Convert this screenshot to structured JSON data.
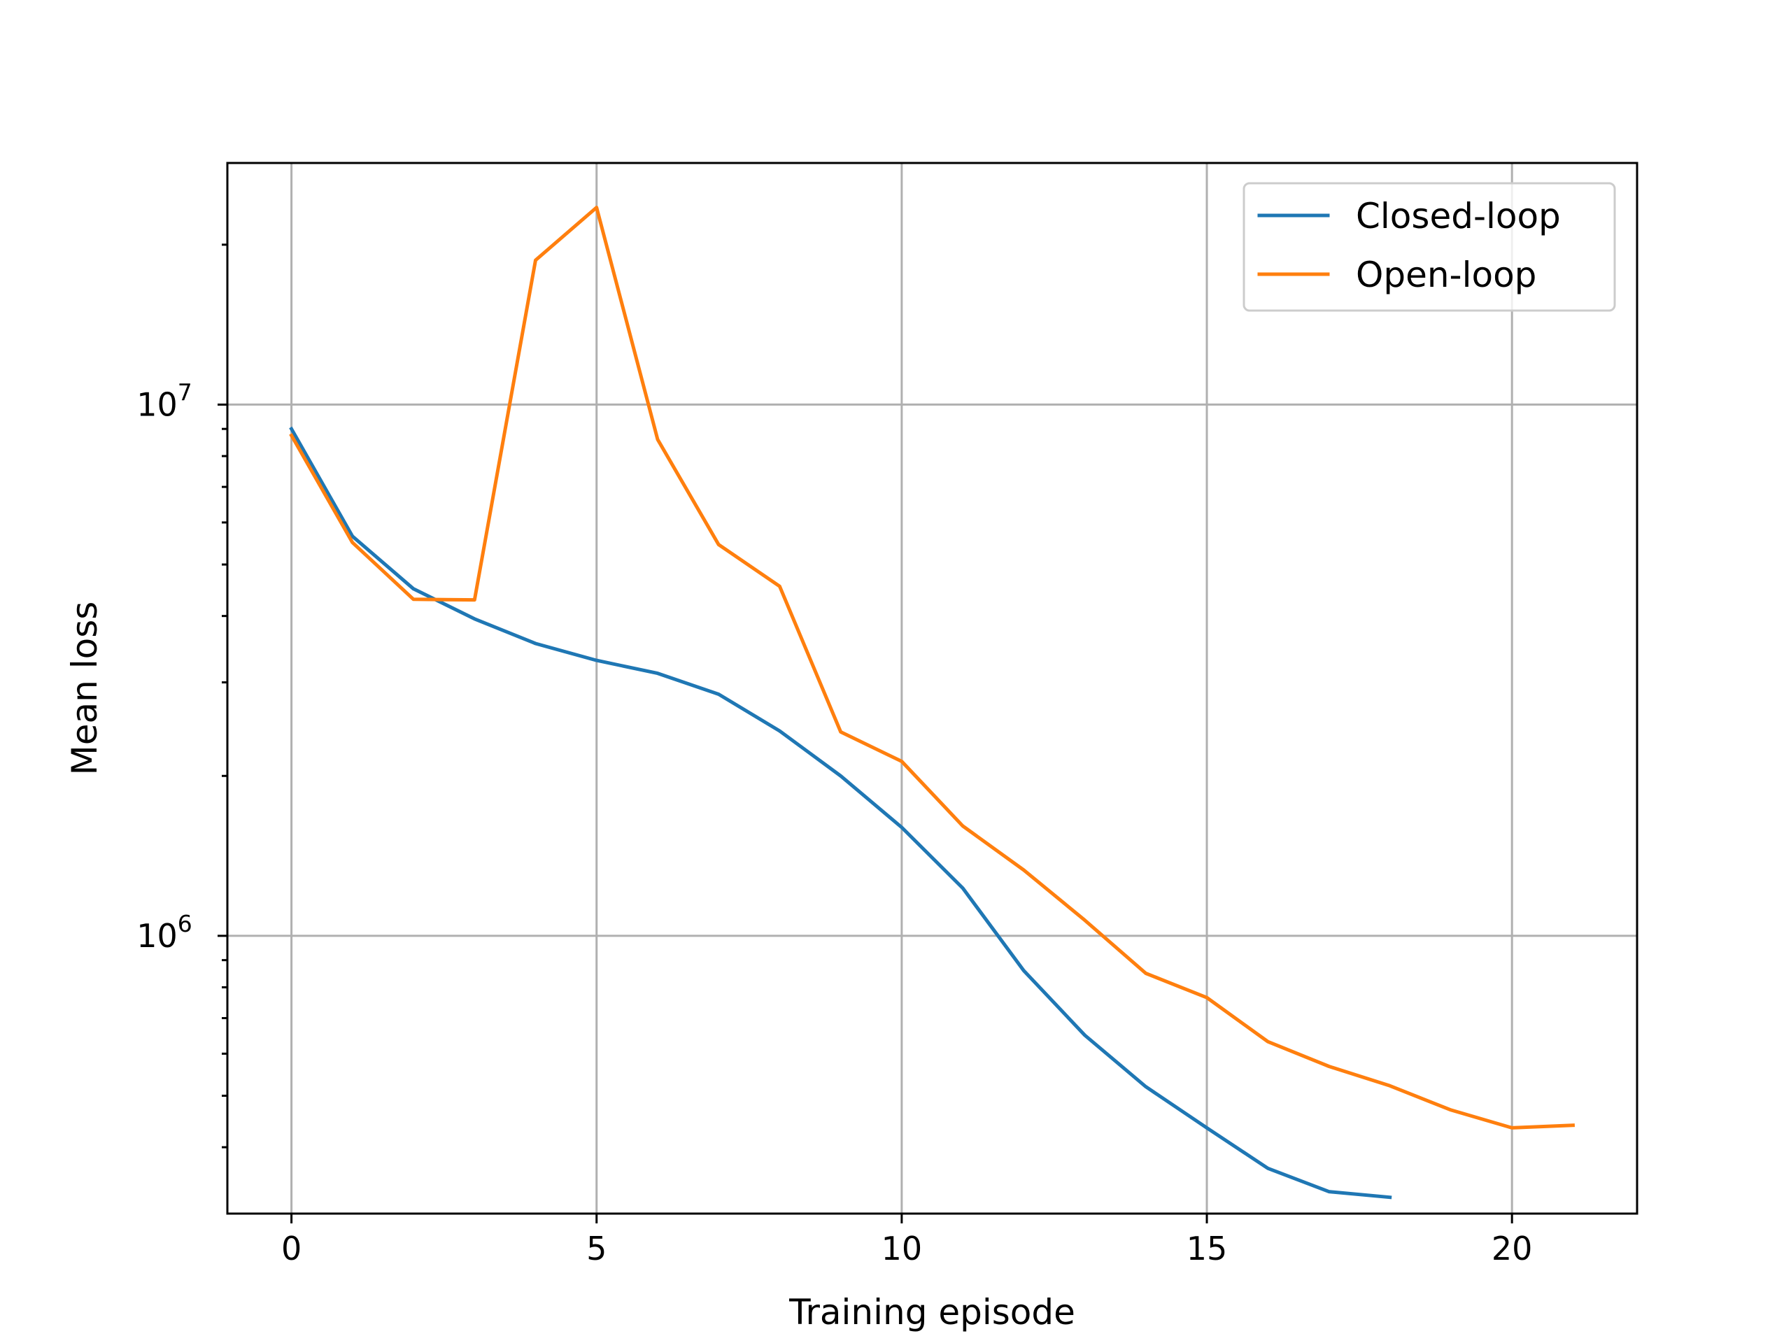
{
  "chart_data": {
    "type": "line",
    "xlabel": "Training episode",
    "ylabel": "Mean loss",
    "xlim": [
      -1.05,
      22.05
    ],
    "ylim": [
      300000,
      28500000
    ],
    "yscale": "log",
    "grid": true,
    "legend_position": "top-right",
    "x_ticks": [
      0,
      5,
      10,
      15,
      20
    ],
    "y_ticks": [
      {
        "value": 1000000,
        "base": "10",
        "exp": "6"
      },
      {
        "value": 10000000,
        "base": "10",
        "exp": "7"
      }
    ],
    "series": [
      {
        "name": "Closed-loop",
        "color": "#1f77b4",
        "x": [
          0,
          1,
          2,
          3,
          4,
          5,
          6,
          7,
          8,
          9,
          10,
          11,
          12,
          13,
          14,
          15,
          16,
          17,
          18
        ],
        "values": [
          9000000,
          5650000,
          4500000,
          3950000,
          3550000,
          3300000,
          3120000,
          2850000,
          2430000,
          2000000,
          1600000,
          1230000,
          860000,
          650000,
          520000,
          435000,
          365000,
          330000,
          322000
        ]
      },
      {
        "name": "Open-loop",
        "color": "#ff7f0e",
        "x": [
          0,
          1,
          2,
          3,
          4,
          5,
          6,
          7,
          8,
          9,
          10,
          11,
          12,
          13,
          14,
          15,
          16,
          17,
          18,
          19,
          20,
          21
        ],
        "values": [
          8750000,
          5500000,
          4300000,
          4290000,
          18700000,
          23500000,
          8600000,
          5450000,
          4550000,
          2420000,
          2130000,
          1610000,
          1330000,
          1070000,
          850000,
          765000,
          632000,
          568000,
          522000,
          470000,
          435000,
          440000
        ]
      }
    ]
  }
}
